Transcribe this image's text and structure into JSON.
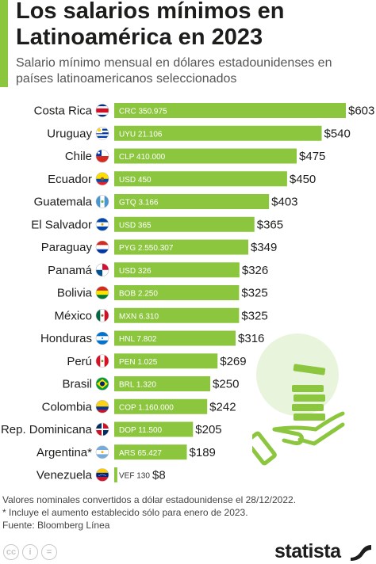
{
  "header": {
    "title": "Los salarios mínimos en Latinoamérica en 2023",
    "subtitle": "Salario mínimo mensual en dólares estadounidenses en países latinoamericanos seleccionados"
  },
  "chart_data": {
    "type": "bar",
    "orientation": "horizontal",
    "unit": "USD",
    "categories": [
      "Costa Rica",
      "Uruguay",
      "Chile",
      "Ecuador",
      "Guatemala",
      "El Salvador",
      "Paraguay",
      "Panamá",
      "Bolivia",
      "México",
      "Honduras",
      "Perú",
      "Brasil",
      "Colombia",
      "Rep. Dominicana",
      "Argentina*",
      "Venezuela"
    ],
    "values": [
      603,
      540,
      475,
      450,
      403,
      365,
      349,
      326,
      325,
      325,
      316,
      269,
      250,
      242,
      205,
      189,
      8
    ],
    "value_labels": [
      "$603",
      "$540",
      "$475",
      "$450",
      "$403",
      "$365",
      "$349",
      "$326",
      "$325",
      "$325",
      "$316",
      "$269",
      "$250",
      "$242",
      "$205",
      "$189",
      "$8"
    ],
    "local_currency_labels": [
      "CRC 350.975",
      "UYU 21.106",
      "CLP 410.000",
      "USD 450",
      "GTQ 3.166",
      "USD 365",
      "PYG 2.550.307",
      "USD 326",
      "BOB 2.250",
      "MXN 6.310",
      "HNL 7.802",
      "PEN 1.025",
      "BRL 1.320",
      "COP 1.160.000",
      "DOP 11.500",
      "ARS 65.427",
      "VEF 130"
    ],
    "flag_icons": [
      "costa-rica-flag-icon",
      "uruguay-flag-icon",
      "chile-flag-icon",
      "ecuador-flag-icon",
      "guatemala-flag-icon",
      "el-salvador-flag-icon",
      "paraguay-flag-icon",
      "panama-flag-icon",
      "bolivia-flag-icon",
      "mexico-flag-icon",
      "honduras-flag-icon",
      "peru-flag-icon",
      "brazil-flag-icon",
      "colombia-flag-icon",
      "dominican-republic-flag-icon",
      "argentina-flag-icon",
      "venezuela-flag-icon"
    ],
    "bar_color": "#8cc63f",
    "xlim": [
      0,
      603
    ],
    "grid": false,
    "legend": "none"
  },
  "footer": {
    "note1": "Valores nominales convertidos a dólar estadounidense el 28/12/2022.",
    "note2": "* Incluye el aumento establecido sólo para enero de 2023.",
    "source": "Fuente: Bloomberg Línea",
    "brand": "statista",
    "license_icons": [
      "cc-icon",
      "attribution-icon",
      "no-derivatives-icon"
    ]
  },
  "illustration": "hand-with-coins-icon"
}
